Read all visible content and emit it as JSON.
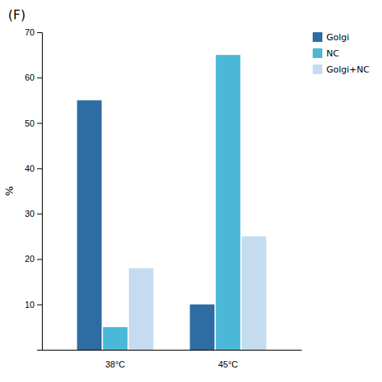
{
  "chart_data": {
    "type": "bar",
    "title": "(F)",
    "y_label": "%",
    "categories": [
      "38°C",
      "45°C"
    ],
    "series": [
      {
        "name": "Golgi",
        "color": "#2E6DA4",
        "values": [
          55,
          10
        ]
      },
      {
        "name": "NC",
        "color": "#4CB8D8",
        "values": [
          5,
          65
        ]
      },
      {
        "name": "Golgi+NC",
        "color": "#C5DCF0",
        "values": [
          18,
          25
        ]
      }
    ],
    "ylim": [
      0,
      70
    ],
    "yticks": [
      10,
      20,
      30,
      40,
      50,
      60,
      70
    ],
    "legend": "upper right"
  }
}
